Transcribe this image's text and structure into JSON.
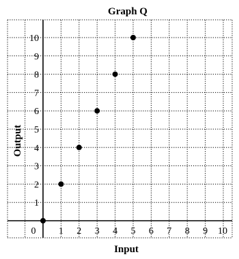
{
  "chart_data": {
    "type": "scatter",
    "title": "Graph Q",
    "xlabel": "Input",
    "ylabel": "Output",
    "x": [
      0,
      1,
      2,
      3,
      4,
      5
    ],
    "y": [
      0,
      2,
      4,
      6,
      8,
      10
    ],
    "xlim": [
      0,
      10
    ],
    "ylim": [
      0,
      10
    ],
    "x_ticks": [
      "0",
      "1",
      "2",
      "3",
      "4",
      "5",
      "6",
      "7",
      "8",
      "9",
      "10"
    ],
    "y_ticks": [
      "1",
      "2",
      "3",
      "4",
      "5",
      "6",
      "7",
      "8",
      "9",
      "10"
    ],
    "grid": true,
    "grid_style": "dotted",
    "point_color": "#000000"
  }
}
